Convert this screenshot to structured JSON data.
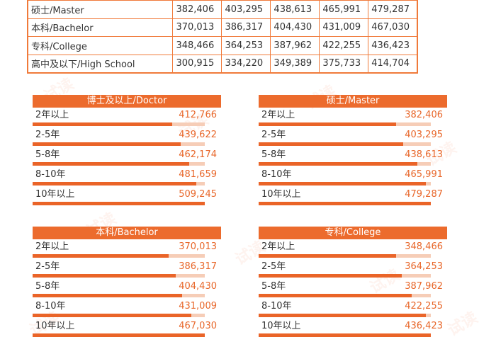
{
  "top_table": {
    "rows": [
      {
        "edu": "硕士/Master",
        "values": [
          "382,406",
          "403,295",
          "438,613",
          "465,991",
          "479,287"
        ]
      },
      {
        "edu": "本科/Bachelor",
        "values": [
          "370,013",
          "386,317",
          "404,430",
          "431,009",
          "467,030"
        ]
      },
      {
        "edu": "专科/College",
        "values": [
          "348,466",
          "364,253",
          "387,962",
          "422,255",
          "436,423"
        ]
      },
      {
        "edu": "高中及以下/High School",
        "values": [
          "300,915",
          "334,220",
          "349,389",
          "375,733",
          "414,704"
        ]
      }
    ]
  },
  "panels": [
    {
      "title": "博士及以上/Doctor",
      "rows": [
        {
          "label": "2年以上",
          "value": "412,766",
          "fill": 0.81
        },
        {
          "label": "2-5年",
          "value": "439,622",
          "fill": 0.86
        },
        {
          "label": "5-8年",
          "value": "462,174",
          "fill": 0.91
        },
        {
          "label": "8-10年",
          "value": "481,659",
          "fill": 0.95
        },
        {
          "label": "10年以上",
          "value": "509,245",
          "fill": 1.0
        }
      ]
    },
    {
      "title": "硕士/Master",
      "rows": [
        {
          "label": "2年以上",
          "value": "382,406",
          "fill": 0.8
        },
        {
          "label": "2-5年",
          "value": "403,295",
          "fill": 0.84
        },
        {
          "label": "5-8年",
          "value": "438,613",
          "fill": 0.92
        },
        {
          "label": "8-10年",
          "value": "465,991",
          "fill": 0.97
        },
        {
          "label": "10年以上",
          "value": "479,287",
          "fill": 1.0
        }
      ]
    },
    {
      "title": "本科/Bachelor",
      "rows": [
        {
          "label": "2年以上",
          "value": "370,013",
          "fill": 0.79
        },
        {
          "label": "2-5年",
          "value": "386,317",
          "fill": 0.83
        },
        {
          "label": "5-8年",
          "value": "404,430",
          "fill": 0.87
        },
        {
          "label": "8-10年",
          "value": "431,009",
          "fill": 0.92
        },
        {
          "label": "10年以上",
          "value": "467,030",
          "fill": 1.0
        }
      ]
    },
    {
      "title": "专科/College",
      "rows": [
        {
          "label": "2年以上",
          "value": "348,466",
          "fill": 0.8
        },
        {
          "label": "2-5年",
          "value": "364,253",
          "fill": 0.83
        },
        {
          "label": "5-8年",
          "value": "387,962",
          "fill": 0.89
        },
        {
          "label": "8-10年",
          "value": "422,255",
          "fill": 0.97
        },
        {
          "label": "10年以上",
          "value": "436,423",
          "fill": 1.0
        }
      ]
    }
  ]
}
